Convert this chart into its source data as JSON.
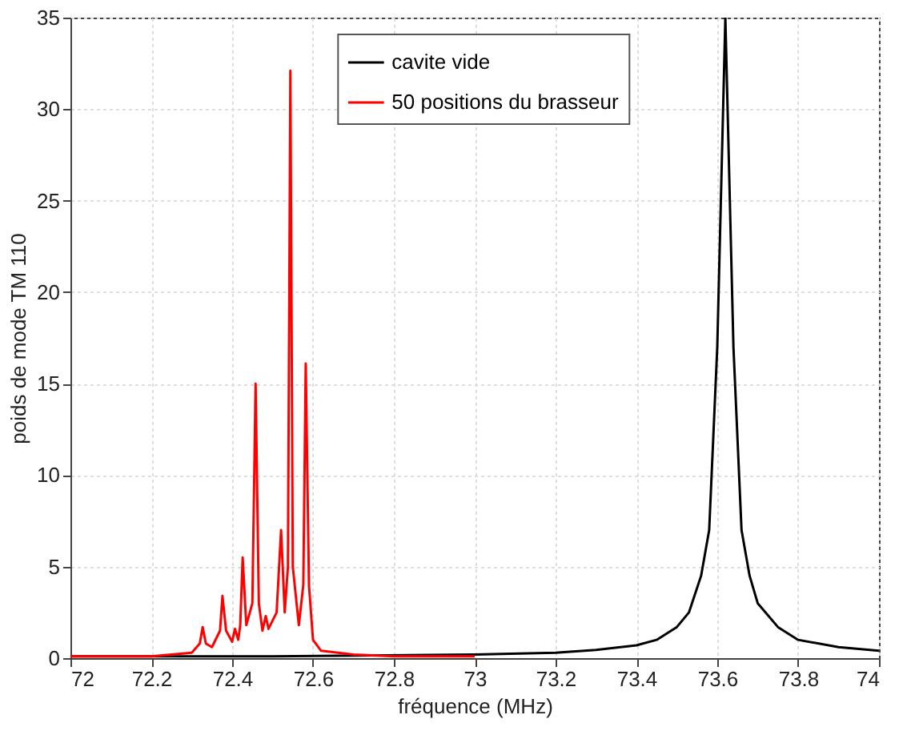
{
  "chart_data": {
    "type": "line",
    "xlabel": "fréquence (MHz)",
    "ylabel": "poids de mode TM 110",
    "xlim": [
      72,
      74
    ],
    "xticks": [
      72,
      72.2,
      72.4,
      72.6,
      72.8,
      73,
      73.2,
      73.4,
      73.6,
      73.8,
      74
    ],
    "ylim": [
      0,
      35
    ],
    "yticks": [
      0,
      5,
      10,
      15,
      20,
      25,
      30,
      35
    ],
    "grid": true,
    "legend": "top",
    "line_style": "solid",
    "marker": "none",
    "series": [
      {
        "name": "cavite vide",
        "color": "#000000",
        "x": [
          72,
          72.5,
          73,
          73.2,
          73.3,
          73.4,
          73.45,
          73.5,
          73.53,
          73.56,
          73.58,
          73.6,
          73.61,
          73.62,
          73.63,
          73.64,
          73.66,
          73.68,
          73.7,
          73.75,
          73.8,
          73.9,
          74
        ],
        "values": [
          0.1,
          0.1,
          0.2,
          0.3,
          0.45,
          0.7,
          1.0,
          1.7,
          2.5,
          4.5,
          7,
          17,
          26,
          35,
          26,
          17,
          7,
          4.5,
          3,
          1.7,
          1.0,
          0.6,
          0.4
        ]
      },
      {
        "name": "50 positions du brasseur",
        "color": "#ff0000",
        "x": [
          72,
          72.2,
          72.3,
          72.32,
          72.327,
          72.335,
          72.35,
          72.37,
          72.376,
          72.385,
          72.4,
          72.407,
          72.415,
          72.42,
          72.426,
          72.435,
          72.45,
          72.458,
          72.466,
          72.475,
          72.483,
          72.49,
          72.51,
          72.521,
          72.53,
          72.538,
          72.544,
          72.55,
          72.565,
          72.576,
          72.582,
          72.59,
          72.6,
          72.62,
          72.7,
          72.8,
          73
        ],
        "values": [
          0.1,
          0.1,
          0.3,
          0.8,
          1.7,
          0.8,
          0.6,
          1.5,
          3.4,
          1.5,
          0.9,
          1.6,
          1.0,
          1.8,
          5.5,
          1.8,
          3.0,
          15.0,
          3.0,
          1.5,
          2.3,
          1.6,
          2.5,
          7.0,
          2.5,
          5.0,
          32.1,
          5.0,
          1.8,
          4.0,
          16.1,
          4.0,
          1.0,
          0.4,
          0.2,
          0.1,
          0.1
        ]
      }
    ]
  }
}
